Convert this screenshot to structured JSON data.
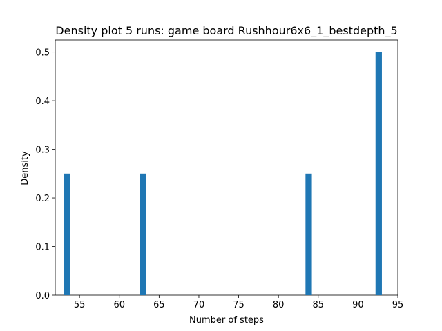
{
  "chart_data": {
    "type": "bar",
    "title": "Density plot 5 runs: game board Rushhour6x6_1_bestdepth_5",
    "xlabel": "Number of steps",
    "ylabel": "Density",
    "xlim": [
      51.95,
      95.0
    ],
    "ylim": [
      0,
      0.525
    ],
    "xticks": [
      55,
      60,
      65,
      70,
      75,
      80,
      85,
      90,
      95
    ],
    "yticks": [
      0.0,
      0.1,
      0.2,
      0.3,
      0.4,
      0.5
    ],
    "ytick_labels": [
      "0.0",
      "0.1",
      "0.2",
      "0.3",
      "0.4",
      "0.5"
    ],
    "bar_width": 0.8,
    "bars": [
      {
        "x": 53.4,
        "value": 0.25
      },
      {
        "x": 63.0,
        "value": 0.25
      },
      {
        "x": 83.8,
        "value": 0.25
      },
      {
        "x": 92.6,
        "value": 0.5
      }
    ],
    "bar_color": "#1f77b4",
    "grid": false,
    "legend": false
  }
}
